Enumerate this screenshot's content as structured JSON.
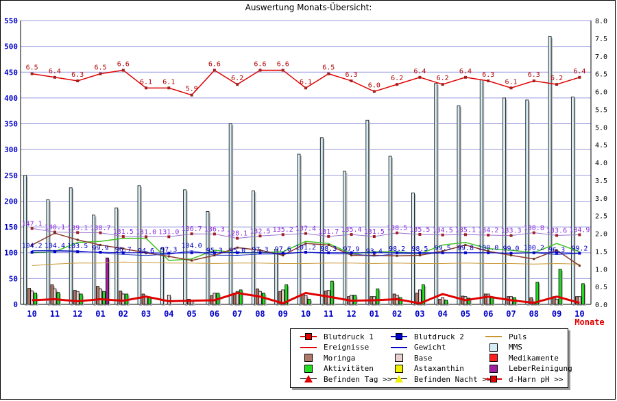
{
  "title": "Auswertung Monats-Übersicht:",
  "chart_data": {
    "type": "bar",
    "title": "Auswertung Monats-Übersicht:",
    "xlabel": "Monate",
    "ylim_left": [
      0,
      550
    ],
    "ylim_right": [
      0,
      8.0
    ],
    "yticks_left": [
      "0",
      "50",
      "100",
      "150",
      "200",
      "250",
      "300",
      "350",
      "400",
      "450",
      "500",
      "550"
    ],
    "yticks_right": [
      "0.0",
      "0.5",
      "1.0",
      "1.5",
      "2.0",
      "2.5",
      "3.0",
      "3.5",
      "4.0",
      "4.5",
      "5.0",
      "5.5",
      "6.0",
      "6.5",
      "7.0",
      "7.5",
      "8.0"
    ],
    "categories": [
      "10",
      "11",
      "12",
      "01",
      "02",
      "03",
      "04",
      "05",
      "06",
      "07",
      "08",
      "09",
      "10",
      "11",
      "12",
      "01",
      "02",
      "03",
      "04",
      "05",
      "06",
      "07",
      "08",
      "09",
      "10"
    ],
    "series": [
      {
        "name": "d-Harn pH >>",
        "axis": "right",
        "labels_shown": true,
        "values": [
          6.5,
          6.4,
          6.3,
          6.5,
          6.6,
          6.1,
          6.1,
          5.9,
          6.6,
          6.2,
          6.6,
          6.6,
          6.1,
          6.5,
          6.3,
          6.0,
          6.2,
          6.4,
          6.2,
          6.4,
          6.3,
          6.1,
          6.3,
          6.2,
          6.4
        ]
      },
      {
        "name": "Blutdruck 1",
        "axis": "left",
        "labels_shown": true,
        "values": [
          147.1,
          140.1,
          139.1,
          138.7,
          131.5,
          131.0,
          131.0,
          136.7,
          136.3,
          128.1,
          132.5,
          135.2,
          137.4,
          131.7,
          135.4,
          131.5,
          138.5,
          135.5,
          134.5,
          135.1,
          134.2,
          133.3,
          138.8,
          133.6,
          134.9
        ]
      },
      {
        "name": "Blutdruck 2",
        "axis": "left",
        "labels_shown": false,
        "values": [
          101,
          102,
          102,
          101,
          100,
          100,
          99,
          100,
          100,
          100,
          100,
          99,
          101,
          100,
          100,
          100,
          100,
          100,
          100,
          100,
          100,
          99,
          100,
          100,
          99
        ]
      },
      {
        "name": "Gewicht",
        "axis": "left",
        "labels_shown": true,
        "values": [
          104.2,
          104.4,
          103.5,
          99.9,
          96.7,
          94.6,
          97.3,
          104.0,
          95.3,
          95.0,
          97.3,
          97.6,
          101.2,
          98.3,
          97.9,
          93.4,
          98.2,
          98.5,
          99.5,
          99.8,
          100.0,
          99.0,
          100.2,
          96.3,
          99.2
        ]
      },
      {
        "name": "Puls",
        "axis": "left",
        "labels_shown": false,
        "values": [
          75,
          78,
          80,
          80,
          82,
          81,
          80,
          80,
          79,
          80,
          80,
          79,
          79,
          80,
          80,
          79,
          80,
          79,
          79,
          80,
          79,
          79,
          78,
          79,
          78
        ]
      },
      {
        "name": "Aktivitäten",
        "axis": "left",
        "type": "line",
        "values": [
          100,
          102,
          120,
          122,
          128,
          128,
          85,
          88,
          105,
          100,
          100,
          102,
          122,
          118,
          98,
          102,
          102,
          98,
          115,
          120,
          108,
          105,
          100,
          118,
          102
        ]
      },
      {
        "name": "Befinden Tag >>",
        "axis": "left",
        "type": "line",
        "values": [
          115,
          138,
          125,
          115,
          108,
          100,
          93,
          85,
          95,
          110,
          105,
          95,
          118,
          115,
          95,
          95,
          94,
          95,
          103,
          115,
          103,
          95,
          88,
          105,
          75
        ]
      },
      {
        "name": "Ereignisse",
        "axis": "left",
        "type": "line",
        "values": [
          8,
          10,
          6,
          10,
          7,
          15,
          6,
          7,
          8,
          22,
          15,
          2,
          22,
          15,
          7,
          8,
          10,
          2,
          20,
          8,
          15,
          8,
          3,
          15,
          3
        ]
      },
      {
        "name": "MMS",
        "axis": "left",
        "type": "bar",
        "values": [
          250,
          203,
          226,
          173,
          187,
          230,
          109,
          222,
          180,
          350,
          220,
          107,
          291,
          323,
          258,
          357,
          287,
          216,
          428,
          385,
          435,
          400,
          396,
          519,
          402
        ]
      },
      {
        "name": "Moringa",
        "axis": "left",
        "type": "bar",
        "values": [
          31,
          38,
          27,
          35,
          26,
          20,
          0,
          10,
          17,
          22,
          30,
          25,
          20,
          26,
          15,
          15,
          20,
          22,
          10,
          16,
          20,
          15,
          13,
          15,
          15
        ]
      },
      {
        "name": "Base",
        "axis": "left",
        "type": "bar",
        "values": [
          26,
          30,
          25,
          30,
          20,
          14,
          18,
          8,
          22,
          25,
          25,
          28,
          17,
          27,
          18,
          15,
          18,
          28,
          13,
          15,
          20,
          15,
          5,
          10,
          15
        ]
      },
      {
        "name": "Aktivitäten (Balken)",
        "axis": "left",
        "type": "bar",
        "values": [
          22,
          23,
          20,
          25,
          20,
          14,
          0,
          0,
          22,
          28,
          22,
          38,
          10,
          45,
          18,
          30,
          13,
          38,
          8,
          12,
          15,
          13,
          43,
          68,
          40
        ]
      },
      {
        "name": "LeberReinigung",
        "axis": "left",
        "type": "bar",
        "values": [
          0,
          0,
          0,
          90,
          0,
          0,
          0,
          0,
          0,
          0,
          0,
          0,
          0,
          0,
          0,
          0,
          0,
          0,
          0,
          0,
          0,
          0,
          0,
          0,
          0
        ]
      }
    ],
    "grid": true,
    "legend_position": "bottom-right"
  },
  "legend": [
    {
      "label": "Blutdruck 1",
      "color": "#e00000",
      "symbol": "line-square"
    },
    {
      "label": "Blutdruck 2",
      "color": "#0000c8",
      "symbol": "line-square"
    },
    {
      "label": "Puls",
      "color": "#c89632",
      "symbol": "line"
    },
    {
      "label": "Ereignisse",
      "color": "#e00000",
      "symbol": "line"
    },
    {
      "label": "Gewicht",
      "color": "#0000c8",
      "symbol": "line"
    },
    {
      "label": "MMS",
      "color": "#d7edf5",
      "symbol": "box"
    },
    {
      "label": "Moringa",
      "color": "#b07868",
      "symbol": "box"
    },
    {
      "label": "Base",
      "color": "#e8d0d0",
      "symbol": "box"
    },
    {
      "label": "Medikamente",
      "color": "#ff2020",
      "symbol": "box"
    },
    {
      "label": "Aktivitäten",
      "color": "#20e020",
      "symbol": "box"
    },
    {
      "label": "Astaxanthin",
      "color": "#f0f000",
      "symbol": "box"
    },
    {
      "label": "LeberReinigung",
      "color": "#a020a0",
      "symbol": "box"
    },
    {
      "label": "Befinden Tag >>",
      "color": "#e00000",
      "symbol": "triangle"
    },
    {
      "label": "Befinden Nacht >>",
      "color": "#f0f000",
      "symbol": "triangle"
    },
    {
      "label": "d-Harn pH >>",
      "color": "#e00000",
      "symbol": "line-square"
    }
  ]
}
